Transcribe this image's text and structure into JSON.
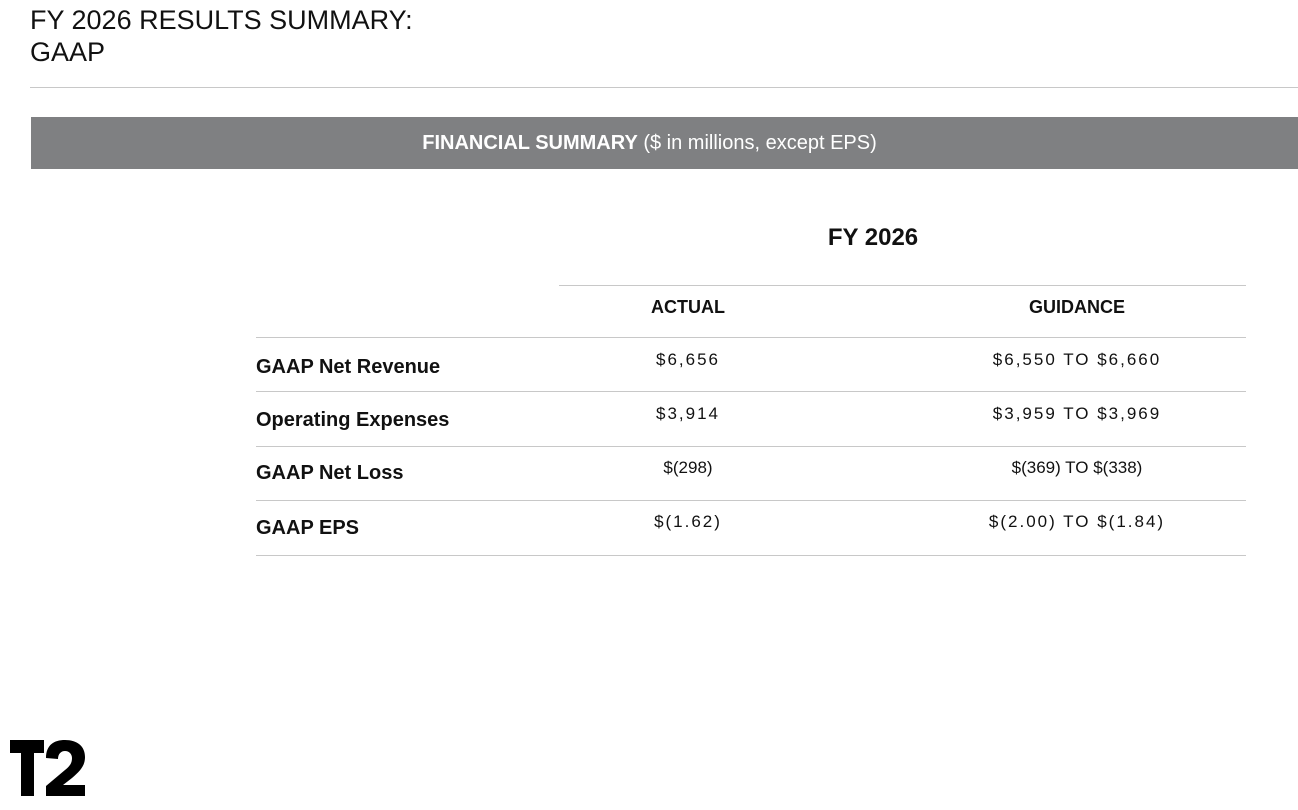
{
  "page": {
    "title_line1": "FY 2026 RESULTS SUMMARY:",
    "title_line2": "GAAP"
  },
  "banner": {
    "bold_text": "FINANCIAL SUMMARY",
    "normal_text": "($ in millions, except EPS)"
  },
  "table": {
    "period": "FY 2026",
    "columns": {
      "actual": "ACTUAL",
      "guidance": "GUIDANCE"
    },
    "rows": [
      {
        "label": "GAAP Net Revenue",
        "actual": "$6,656",
        "guidance": "$6,550 TO $6,660"
      },
      {
        "label": "Operating Expenses",
        "actual": "$3,914",
        "guidance": "$3,959 TO $3,969"
      },
      {
        "label": "GAAP Net Loss",
        "actual": "$(298)",
        "guidance": "$(369) TO $(338)"
      },
      {
        "label": "GAAP EPS",
        "actual": "$(1.62)",
        "guidance": "$(2.00) TO $(1.84)"
      }
    ]
  },
  "logo": {
    "text": "T2",
    "icon": "t2-logo-icon"
  }
}
